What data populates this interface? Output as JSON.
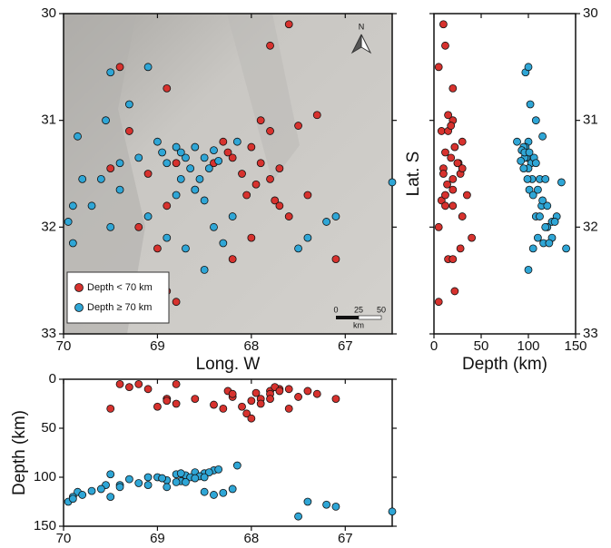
{
  "chart_data": [
    {
      "type": "scatter",
      "xlabel": "Long. W",
      "xlim": [
        70,
        66.5
      ],
      "ylim": [
        33,
        30
      ],
      "xticks": [
        70,
        69,
        68,
        67
      ],
      "yticks": [
        30,
        31,
        32,
        33
      ],
      "north_label": "N",
      "scale_bar": {
        "labels": [
          "0",
          "25",
          "50"
        ],
        "unit": "km"
      },
      "legend": "bottom-left",
      "series": [
        {
          "name": "Depth < 70 km",
          "color": "#d7322e",
          "x": [
            67.6,
            67.8,
            69.4,
            68.9,
            69.3,
            68.3,
            67.9,
            67.8,
            68.0,
            68.2,
            67.9,
            67.7,
            68.1,
            67.95,
            67.8,
            68.05,
            67.75,
            68.25,
            68.4,
            67.6,
            67.4,
            68.8,
            69.1,
            69.5,
            68.9,
            69.2,
            68.2,
            68.0,
            67.1,
            68.9,
            68.8,
            69.0,
            67.5,
            67.3,
            68.6,
            67.7
          ],
          "values": [
            30.1,
            30.3,
            30.5,
            30.7,
            31.1,
            31.2,
            31.0,
            31.1,
            31.25,
            31.35,
            31.4,
            31.45,
            31.5,
            31.6,
            31.55,
            31.7,
            31.75,
            31.3,
            31.4,
            31.9,
            31.7,
            31.4,
            31.5,
            31.45,
            31.8,
            32.0,
            32.3,
            32.1,
            32.3,
            32.6,
            32.7,
            32.2,
            31.05,
            30.95,
            31.65,
            31.8
          ],
          "depth": [
            10,
            12,
            5,
            20,
            8,
            30,
            20,
            15,
            22,
            18,
            25,
            10,
            28,
            14,
            20,
            35,
            8,
            12,
            26,
            30,
            12,
            25,
            10,
            30,
            20,
            5,
            15,
            40,
            20,
            22,
            5,
            28,
            18,
            15,
            20,
            12
          ]
        },
        {
          "name": "Depth ≥ 70 km",
          "color": "#2fa6d6",
          "x": [
            69.5,
            69.1,
            69.3,
            69.55,
            69.85,
            69.0,
            68.8,
            68.6,
            68.4,
            68.7,
            68.5,
            68.9,
            68.65,
            68.45,
            68.75,
            68.55,
            69.2,
            69.4,
            68.35,
            68.6,
            68.8,
            69.6,
            69.8,
            69.4,
            69.7,
            69.9,
            69.95,
            69.5,
            69.1,
            68.5,
            68.2,
            68.4,
            68.7,
            68.9,
            68.5,
            68.3,
            67.4,
            67.1,
            67.2,
            67.5,
            66.5,
            69.9,
            68.75,
            68.95,
            68.15
          ],
          "values": [
            30.55,
            30.5,
            30.85,
            31.0,
            31.15,
            31.2,
            31.25,
            31.25,
            31.28,
            31.35,
            31.35,
            31.4,
            31.45,
            31.45,
            31.55,
            31.55,
            31.35,
            31.4,
            31.38,
            31.65,
            31.7,
            31.55,
            31.55,
            31.65,
            31.8,
            31.8,
            31.95,
            32.0,
            31.9,
            31.75,
            31.9,
            32.0,
            32.2,
            32.1,
            32.4,
            32.15,
            32.1,
            31.9,
            31.95,
            32.2,
            31.58,
            32.15,
            31.3,
            31.3,
            31.2
          ],
          "depth": [
            97,
            100,
            102,
            108,
            115,
            100,
            97,
            95,
            93,
            98,
            96,
            103,
            100,
            95,
            104,
            99,
            106,
            108,
            92,
            101,
            105,
            112,
            118,
            110,
            114,
            120,
            125,
            120,
            108,
            115,
            112,
            118,
            105,
            110,
            100,
            116,
            125,
            130,
            128,
            140,
            135,
            122,
            96,
            101,
            88
          ]
        }
      ]
    },
    {
      "type": "scatter",
      "xlabel": "Depth (km)",
      "ylabel": "Lat. S",
      "xlim": [
        0,
        150
      ],
      "ylim": [
        33,
        30
      ],
      "xticks": [
        0,
        50,
        100,
        150
      ],
      "yticks": [
        30,
        31,
        32,
        33
      ]
    },
    {
      "type": "scatter",
      "ylabel": "Depth (km)",
      "xlim": [
        70,
        66.5
      ],
      "ylim": [
        150,
        0
      ],
      "xticks": [
        70,
        69,
        68,
        67
      ],
      "yticks": [
        0,
        50,
        100,
        150
      ]
    }
  ]
}
